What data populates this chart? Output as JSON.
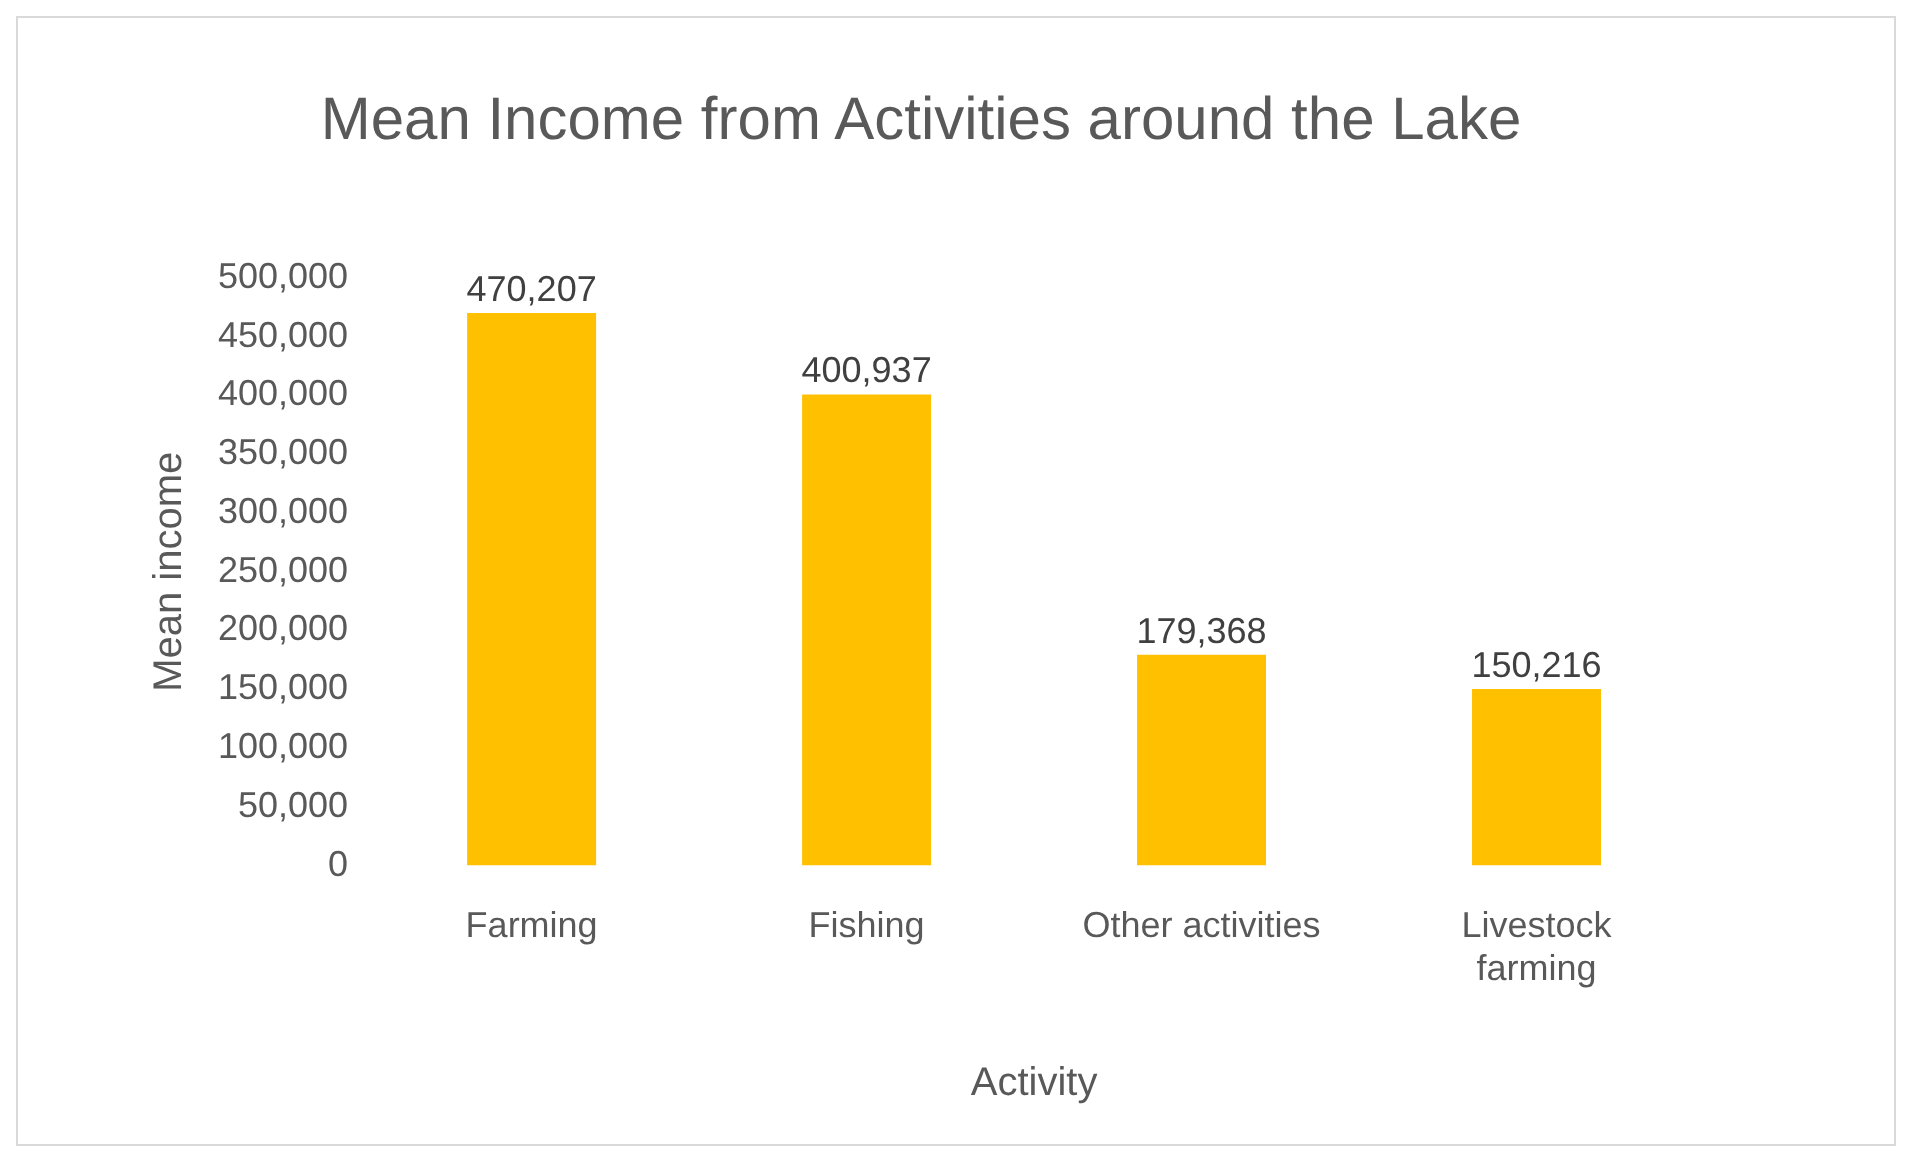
{
  "chart_data": {
    "type": "bar",
    "title": "Mean Income from Activities around the Lake",
    "xlabel": "Activity",
    "ylabel": "Mean income",
    "categories": [
      "Farming",
      "Fishing",
      "Other activities",
      "Livestock farming"
    ],
    "values": [
      470207,
      400937,
      179368,
      150216
    ],
    "value_labels": [
      "470,207",
      "400,937",
      "179,368",
      "150,216"
    ],
    "color": "#ffc000",
    "ylim": [
      0,
      500000
    ],
    "yticks": [
      0,
      {
        "value": 50000,
        "label": "50,000"
      },
      {
        "value": 100000,
        "label": "100,000"
      },
      {
        "value": 150000,
        "label": "150,000"
      },
      {
        "value": 200000,
        "label": "200,000"
      },
      {
        "value": 250000,
        "label": "250,000"
      },
      {
        "value": 300000,
        "label": "300,000"
      },
      {
        "value": 350000,
        "label": "350,000"
      },
      {
        "value": 400000,
        "label": "400,000"
      },
      {
        "value": 450000,
        "label": "450,000"
      },
      {
        "value": 500000,
        "label": "500,000"
      }
    ],
    "grid": false,
    "legend": false
  }
}
